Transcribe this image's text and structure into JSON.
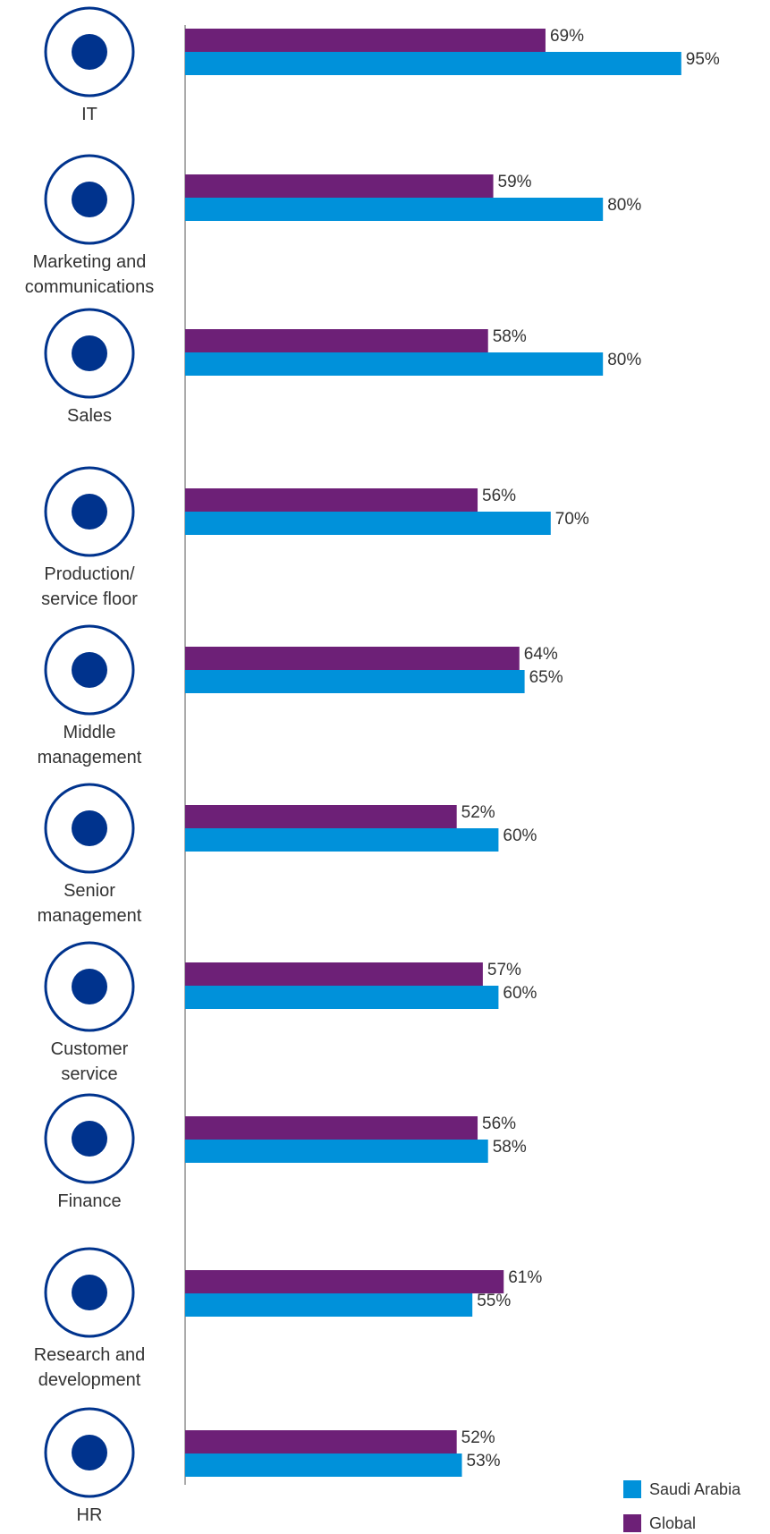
{
  "chart_data": {
    "type": "bar",
    "orientation": "horizontal",
    "categories": [
      "IT",
      "Marketing and\ncommunications",
      "Sales",
      "Production/\nservice floor",
      "Middle\nmanagement",
      "Senior\nmanagement",
      "Customer\nservice",
      "Finance",
      "Research and\ndevelopment",
      "HR"
    ],
    "series": [
      {
        "name": "Global",
        "color": "#6d2077",
        "values": [
          69,
          59,
          58,
          56,
          64,
          52,
          57,
          56,
          61,
          52
        ],
        "value_labels": [
          "69%",
          "59%",
          "58%",
          "56%",
          "64%",
          "52%",
          "57%",
          "56%",
          "61%",
          "52%"
        ]
      },
      {
        "name": "Saudi Arabia",
        "color": "#0091da",
        "values": [
          95,
          80,
          80,
          70,
          65,
          60,
          60,
          58,
          55,
          53
        ],
        "value_labels": [
          "95%",
          "80%",
          "80%",
          "70%",
          "65%",
          "60%",
          "60%",
          "58%",
          "55%",
          "53%"
        ]
      }
    ],
    "xlim": [
      0,
      100
    ]
  }
}
